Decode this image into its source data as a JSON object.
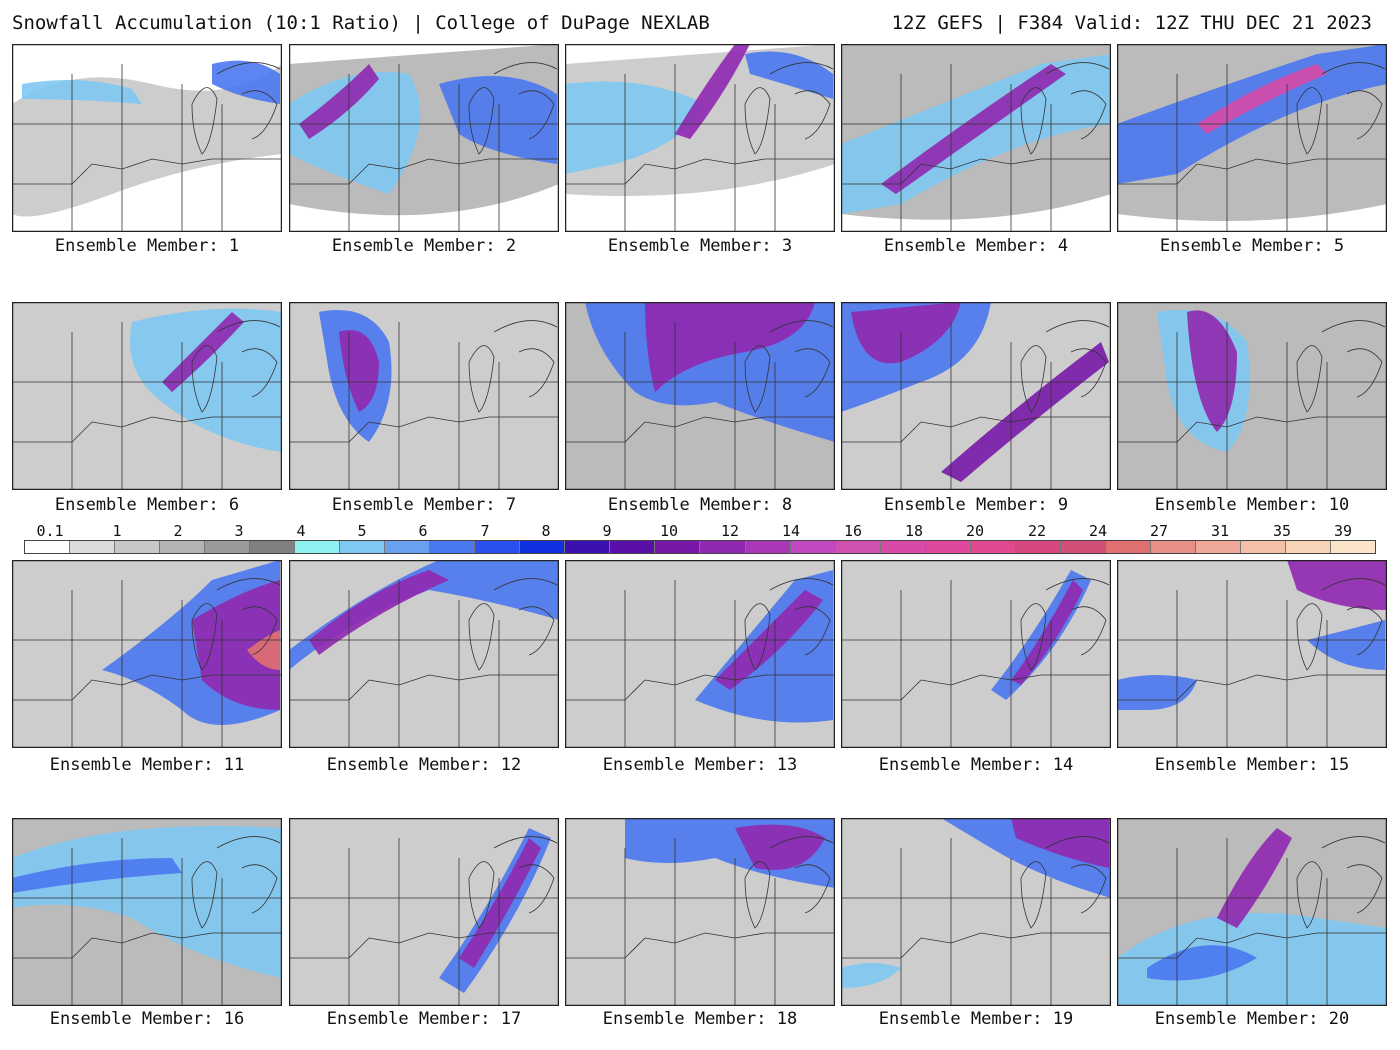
{
  "header": {
    "left_title": "Snowfall Accumulation (10:1 Ratio) | College of DuPage NEXLAB",
    "right_title": "12Z GEFS | F384 Valid: 12Z THU DEC 21 2023"
  },
  "members": [
    {
      "caption": "Ensemble Member: 1"
    },
    {
      "caption": "Ensemble Member: 2"
    },
    {
      "caption": "Ensemble Member: 3"
    },
    {
      "caption": "Ensemble Member: 4"
    },
    {
      "caption": "Ensemble Member: 5"
    },
    {
      "caption": "Ensemble Member: 6"
    },
    {
      "caption": "Ensemble Member: 7"
    },
    {
      "caption": "Ensemble Member: 8"
    },
    {
      "caption": "Ensemble Member: 9"
    },
    {
      "caption": "Ensemble Member: 10"
    },
    {
      "caption": "Ensemble Member: 11"
    },
    {
      "caption": "Ensemble Member: 12"
    },
    {
      "caption": "Ensemble Member: 13"
    },
    {
      "caption": "Ensemble Member: 14"
    },
    {
      "caption": "Ensemble Member: 15"
    },
    {
      "caption": "Ensemble Member: 16"
    },
    {
      "caption": "Ensemble Member: 17"
    },
    {
      "caption": "Ensemble Member: 18"
    },
    {
      "caption": "Ensemble Member: 19"
    },
    {
      "caption": "Ensemble Member: 20"
    }
  ],
  "legend": {
    "labels": [
      "0.1",
      "1",
      "2",
      "3",
      "4",
      "5",
      "6",
      "7",
      "8",
      "9",
      "10",
      "12",
      "14",
      "16",
      "18",
      "20",
      "22",
      "24",
      "27",
      "31",
      "35",
      "39"
    ],
    "colors": [
      "#ffffff",
      "#dcdcdc",
      "#c8c8c8",
      "#b4b4b4",
      "#9a9a9a",
      "#808080",
      "#8ff0f0",
      "#7ec8f2",
      "#6aa0f0",
      "#4a78f0",
      "#2a50f0",
      "#1030e0",
      "#3a10b0",
      "#5a10a8",
      "#7818a8",
      "#9028b0",
      "#a838b8",
      "#c048c0",
      "#d050b0",
      "#d84aa8",
      "#e048a0",
      "#e04890",
      "#d84880",
      "#d05078",
      "#e07070",
      "#e89088",
      "#f0a898",
      "#f4c0a8",
      "#f8d4b8",
      "#fce4c8"
    ]
  }
}
